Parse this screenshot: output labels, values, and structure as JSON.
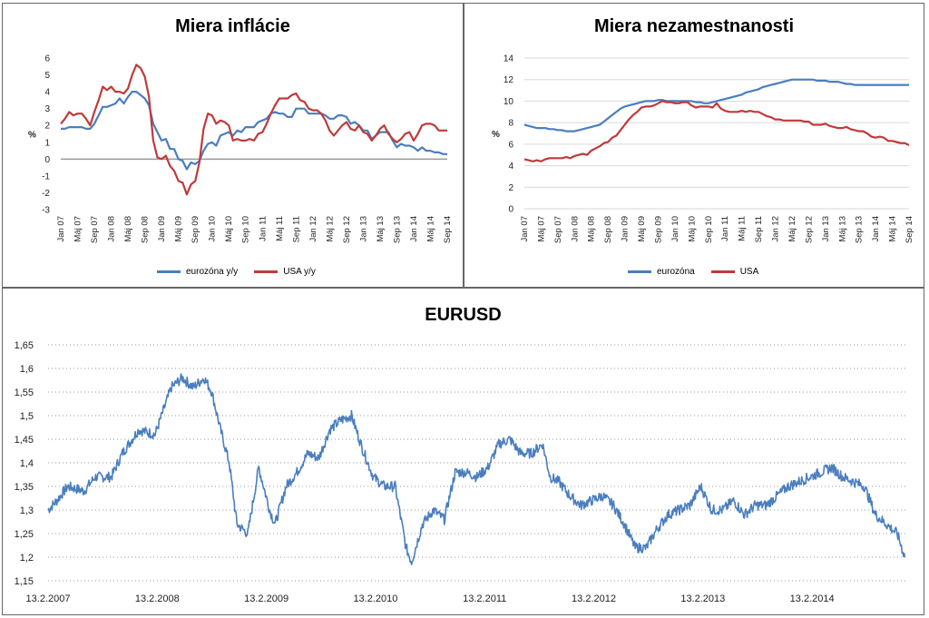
{
  "colors": {
    "blue": "#4a7ebf",
    "red": "#c03a3a",
    "grid": "#9a9a9a",
    "zero": "#888888"
  },
  "chart_data": [
    {
      "type": "line",
      "title": "Miera inflácie",
      "ylabel": "%",
      "ylim": [
        -3,
        6
      ],
      "yticks": [
        "6",
        "5",
        "4",
        "3",
        "2",
        "1",
        "0",
        "-1",
        "-2",
        "-3"
      ],
      "ytick_values": [
        6,
        5,
        4,
        3,
        2,
        1,
        0,
        -1,
        -2,
        -3
      ],
      "xtick_labels": [
        "Jan 07",
        "Máj 07",
        "Sep 07",
        "Jan 08",
        "Máj 08",
        "Sep 08",
        "Jan 09",
        "Máj 09",
        "Sep 09",
        "Jan 10",
        "Máj 10",
        "Sep 10",
        "Jan 11",
        "Máj 11",
        "Sep 11",
        "Jan 12",
        "Máj 12",
        "Sep 12",
        "Jan 13",
        "Máj 13",
        "Sep 13",
        "Jan 14",
        "Máj 14",
        "Sep 14"
      ],
      "legend_position": "bottom",
      "series": [
        {
          "name": "eurozóna y/y",
          "color": "#4a7ebf",
          "values": [
            1.8,
            1.8,
            1.9,
            1.9,
            1.9,
            1.9,
            1.8,
            1.8,
            2.1,
            2.6,
            3.1,
            3.1,
            3.2,
            3.3,
            3.6,
            3.3,
            3.7,
            4.0,
            4.0,
            3.8,
            3.6,
            3.2,
            2.1,
            1.6,
            1.1,
            1.2,
            0.6,
            0.6,
            0.0,
            -0.1,
            -0.6,
            -0.2,
            -0.3,
            -0.1,
            0.5,
            0.9,
            1.0,
            0.8,
            1.4,
            1.5,
            1.6,
            1.4,
            1.7,
            1.6,
            1.9,
            1.9,
            1.9,
            2.2,
            2.3,
            2.4,
            2.7,
            2.8,
            2.7,
            2.7,
            2.5,
            2.5,
            3.0,
            3.0,
            3.0,
            2.7,
            2.7,
            2.7,
            2.7,
            2.6,
            2.4,
            2.4,
            2.6,
            2.6,
            2.5,
            2.1,
            2.2,
            2.0,
            1.7,
            1.7,
            1.2,
            1.4,
            1.6,
            1.6,
            1.6,
            1.1,
            0.7,
            0.9,
            0.8,
            0.8,
            0.7,
            0.5,
            0.7,
            0.5,
            0.5,
            0.4,
            0.4,
            0.3,
            0.3
          ]
        },
        {
          "name": "USA y/y",
          "color": "#c03a3a",
          "values": [
            2.1,
            2.4,
            2.8,
            2.6,
            2.7,
            2.7,
            2.4,
            2.0,
            2.8,
            3.5,
            4.3,
            4.1,
            4.3,
            4.0,
            4.0,
            3.9,
            4.2,
            5.0,
            5.6,
            5.4,
            4.9,
            3.7,
            1.1,
            0.1,
            0.0,
            0.2,
            -0.4,
            -0.7,
            -1.3,
            -1.4,
            -2.1,
            -1.5,
            -1.3,
            -0.2,
            1.8,
            2.7,
            2.6,
            2.1,
            2.3,
            2.2,
            2.0,
            1.1,
            1.2,
            1.1,
            1.1,
            1.2,
            1.1,
            1.5,
            1.6,
            2.1,
            2.7,
            3.2,
            3.6,
            3.6,
            3.6,
            3.8,
            3.9,
            3.5,
            3.4,
            3.0,
            2.9,
            2.9,
            2.7,
            2.3,
            1.7,
            1.4,
            1.7,
            2.0,
            2.2,
            1.8,
            1.7,
            2.0,
            1.6,
            1.5,
            1.1,
            1.4,
            1.8,
            2.0,
            1.5,
            1.2,
            1.0,
            1.2,
            1.5,
            1.6,
            1.1,
            1.5,
            2.0,
            2.1,
            2.1,
            2.0,
            1.7,
            1.7,
            1.7
          ]
        }
      ]
    },
    {
      "type": "line",
      "title": "Miera nezamestnanosti",
      "ylabel": "%",
      "ylim": [
        0,
        14
      ],
      "yticks": [
        "14",
        "12",
        "10",
        "8",
        "6",
        "4",
        "2",
        "0"
      ],
      "ytick_values": [
        14,
        12,
        10,
        8,
        6,
        4,
        2,
        0
      ],
      "xtick_labels": [
        "Jan 07",
        "Máj 07",
        "Sep 07",
        "Jan 08",
        "Máj 08",
        "Sep 08",
        "Jan 09",
        "Máj 09",
        "Sep 09",
        "Jan 10",
        "Máj 10",
        "Sep 10",
        "Jan 11",
        "Máj 11",
        "Sep 11",
        "Jan 12",
        "Máj 12",
        "Sep 12",
        "Jan 13",
        "Máj 13",
        "Sep 13",
        "Jan 14",
        "Máj 14",
        "Sep 14"
      ],
      "legend_position": "bottom",
      "series": [
        {
          "name": "eurozóna",
          "color": "#4a7ebf",
          "values": [
            7.8,
            7.7,
            7.6,
            7.5,
            7.5,
            7.5,
            7.4,
            7.4,
            7.3,
            7.3,
            7.2,
            7.2,
            7.2,
            7.3,
            7.4,
            7.5,
            7.6,
            7.7,
            7.8,
            8.1,
            8.4,
            8.7,
            9.0,
            9.3,
            9.5,
            9.6,
            9.7,
            9.8,
            9.9,
            10.0,
            10.0,
            10.0,
            10.1,
            10.1,
            10.0,
            10.0,
            10.0,
            10.0,
            10.0,
            10.0,
            10.0,
            9.9,
            9.9,
            9.8,
            9.8,
            9.9,
            10.0,
            10.1,
            10.2,
            10.3,
            10.4,
            10.5,
            10.6,
            10.8,
            10.9,
            11.0,
            11.1,
            11.3,
            11.4,
            11.5,
            11.6,
            11.7,
            11.8,
            11.9,
            12.0,
            12.0,
            12.0,
            12.0,
            12.0,
            12.0,
            11.9,
            11.9,
            11.9,
            11.8,
            11.8,
            11.8,
            11.7,
            11.6,
            11.6,
            11.5,
            11.5,
            11.5,
            11.5,
            11.5,
            11.5,
            11.5,
            11.5,
            11.5,
            11.5,
            11.5,
            11.5,
            11.5,
            11.5
          ]
        },
        {
          "name": "USA",
          "color": "#c03a3a",
          "values": [
            4.6,
            4.5,
            4.4,
            4.5,
            4.4,
            4.6,
            4.7,
            4.7,
            4.7,
            4.7,
            4.8,
            4.7,
            4.9,
            5.0,
            5.1,
            5.0,
            5.4,
            5.6,
            5.8,
            6.1,
            6.2,
            6.6,
            6.8,
            7.3,
            7.8,
            8.3,
            8.7,
            9.0,
            9.4,
            9.5,
            9.5,
            9.6,
            9.8,
            10.0,
            9.9,
            9.9,
            9.8,
            9.8,
            9.9,
            9.9,
            9.6,
            9.4,
            9.5,
            9.5,
            9.5,
            9.4,
            9.8,
            9.3,
            9.1,
            9.0,
            9.0,
            9.0,
            9.1,
            9.0,
            9.1,
            9.0,
            9.0,
            8.8,
            8.6,
            8.5,
            8.3,
            8.3,
            8.2,
            8.2,
            8.2,
            8.2,
            8.2,
            8.1,
            8.1,
            7.8,
            7.8,
            7.8,
            7.9,
            7.7,
            7.6,
            7.5,
            7.5,
            7.6,
            7.4,
            7.3,
            7.2,
            7.2,
            7.0,
            6.7,
            6.6,
            6.7,
            6.6,
            6.3,
            6.3,
            6.2,
            6.1,
            6.1,
            5.9
          ]
        }
      ]
    },
    {
      "type": "line",
      "title": "EURUSD",
      "ylim": [
        1.15,
        1.65
      ],
      "yticks": [
        "1,65",
        "1,6",
        "1,55",
        "1,5",
        "1,45",
        "1,4",
        "1,35",
        "1,3",
        "1,25",
        "1,2",
        "1,15"
      ],
      "ytick_values": [
        1.65,
        1.6,
        1.55,
        1.5,
        1.45,
        1.4,
        1.35,
        1.3,
        1.25,
        1.2,
        1.15
      ],
      "xtick_labels": [
        "13.2.2007",
        "13.2.2008",
        "13.2.2009",
        "13.2.2010",
        "13.2.2011",
        "13.2.2012",
        "13.2.2013",
        "13.2.2014"
      ],
      "x_start_year": 2007.12,
      "x_end_year": 2015.0,
      "series": [
        {
          "name": "",
          "color": "#4a7ebf",
          "x_year": [
            2007.12,
            2007.2,
            2007.3,
            2007.45,
            2007.55,
            2007.7,
            2007.8,
            2007.95,
            2008.1,
            2008.25,
            2008.35,
            2008.45,
            2008.55,
            2008.62,
            2008.7,
            2008.78,
            2008.85,
            2008.95,
            2009.05,
            2009.15,
            2009.2,
            2009.3,
            2009.4,
            2009.5,
            2009.6,
            2009.7,
            2009.8,
            2009.9,
            2010.0,
            2010.1,
            2010.2,
            2010.3,
            2010.4,
            2010.45,
            2010.55,
            2010.65,
            2010.75,
            2010.85,
            2010.95,
            2011.05,
            2011.15,
            2011.25,
            2011.35,
            2011.45,
            2011.55,
            2011.65,
            2011.72,
            2011.8,
            2011.9,
            2012.0,
            2012.1,
            2012.2,
            2012.3,
            2012.4,
            2012.5,
            2012.6,
            2012.7,
            2012.8,
            2012.9,
            2013.0,
            2013.1,
            2013.2,
            2013.3,
            2013.4,
            2013.5,
            2013.6,
            2013.7,
            2013.8,
            2013.9,
            2014.0,
            2014.1,
            2014.2,
            2014.3,
            2014.4,
            2014.5,
            2014.6,
            2014.7,
            2014.8,
            2014.9,
            2014.97
          ],
          "values": [
            1.3,
            1.32,
            1.35,
            1.34,
            1.37,
            1.37,
            1.42,
            1.47,
            1.46,
            1.56,
            1.58,
            1.56,
            1.58,
            1.55,
            1.47,
            1.4,
            1.27,
            1.25,
            1.39,
            1.3,
            1.27,
            1.35,
            1.38,
            1.42,
            1.41,
            1.47,
            1.49,
            1.5,
            1.43,
            1.37,
            1.35,
            1.35,
            1.22,
            1.19,
            1.27,
            1.3,
            1.28,
            1.38,
            1.38,
            1.37,
            1.39,
            1.44,
            1.45,
            1.42,
            1.42,
            1.44,
            1.37,
            1.36,
            1.33,
            1.31,
            1.32,
            1.33,
            1.31,
            1.27,
            1.22,
            1.22,
            1.26,
            1.29,
            1.3,
            1.31,
            1.35,
            1.3,
            1.3,
            1.32,
            1.29,
            1.31,
            1.31,
            1.33,
            1.35,
            1.36,
            1.37,
            1.38,
            1.39,
            1.37,
            1.36,
            1.35,
            1.29,
            1.27,
            1.25,
            1.2
          ]
        }
      ]
    }
  ]
}
